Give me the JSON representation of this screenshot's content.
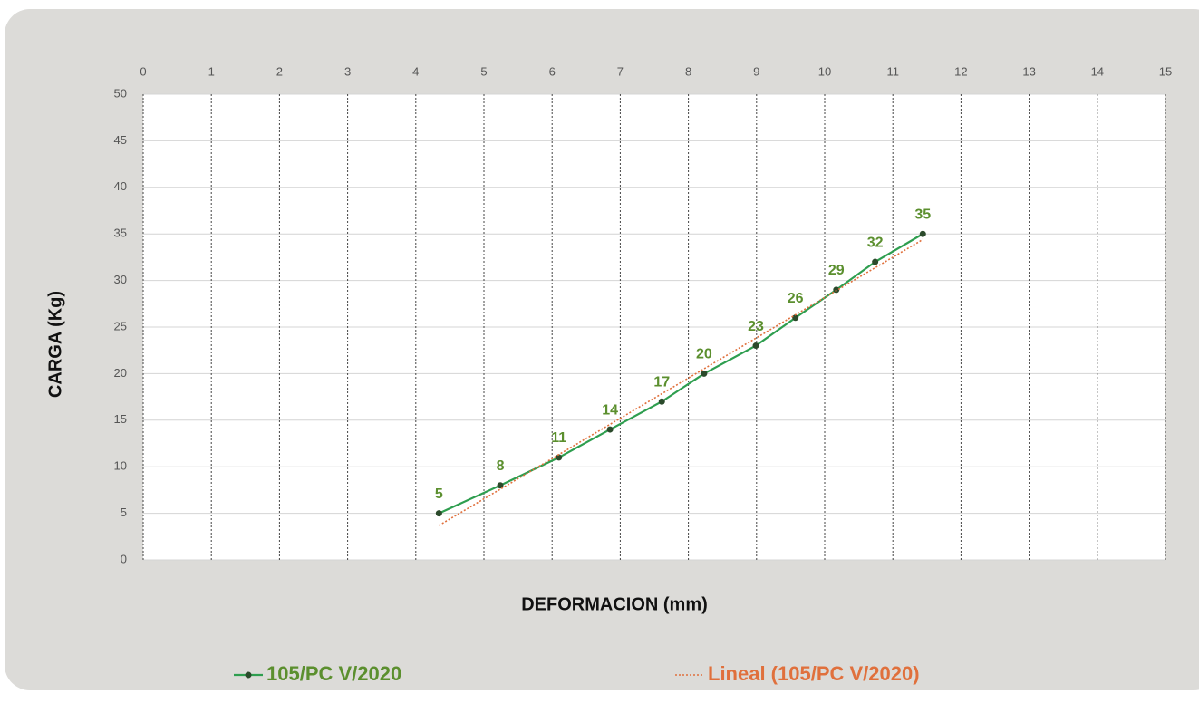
{
  "chart_data": {
    "type": "line",
    "y_label": "CARGA (Kg)",
    "x_label": "DEFORMACION (mm)",
    "series": [
      {
        "name": "105/PC V/2020",
        "color": "#2e9e4f",
        "marker_color": "#2b4a2b",
        "label_color": "#5b8f2e",
        "line_style": "solid",
        "markers": true,
        "data_labels": true,
        "x": [
          4.34,
          5.24,
          6.1,
          6.85,
          7.61,
          8.23,
          8.99,
          9.57,
          10.17,
          10.74,
          11.44
        ],
        "values": [
          5,
          8,
          11,
          14,
          17,
          20,
          23,
          26,
          29,
          32,
          35
        ]
      },
      {
        "name": "Lineal (105/PC V/2020)",
        "color": "#e0703c",
        "line_style": "dotted",
        "markers": false,
        "data_labels": false,
        "x": [
          4.34,
          11.44
        ],
        "values": [
          3.7,
          34.4
        ]
      }
    ],
    "xlim": [
      0,
      15
    ],
    "xticks": [
      0,
      1,
      2,
      3,
      4,
      5,
      6,
      7,
      8,
      9,
      10,
      11,
      12,
      13,
      14,
      15
    ],
    "ylim": [
      0,
      50
    ],
    "yticks": [
      0,
      5,
      10,
      15,
      20,
      25,
      30,
      35,
      40,
      45,
      50
    ],
    "grid": true,
    "legend": "bottom"
  }
}
